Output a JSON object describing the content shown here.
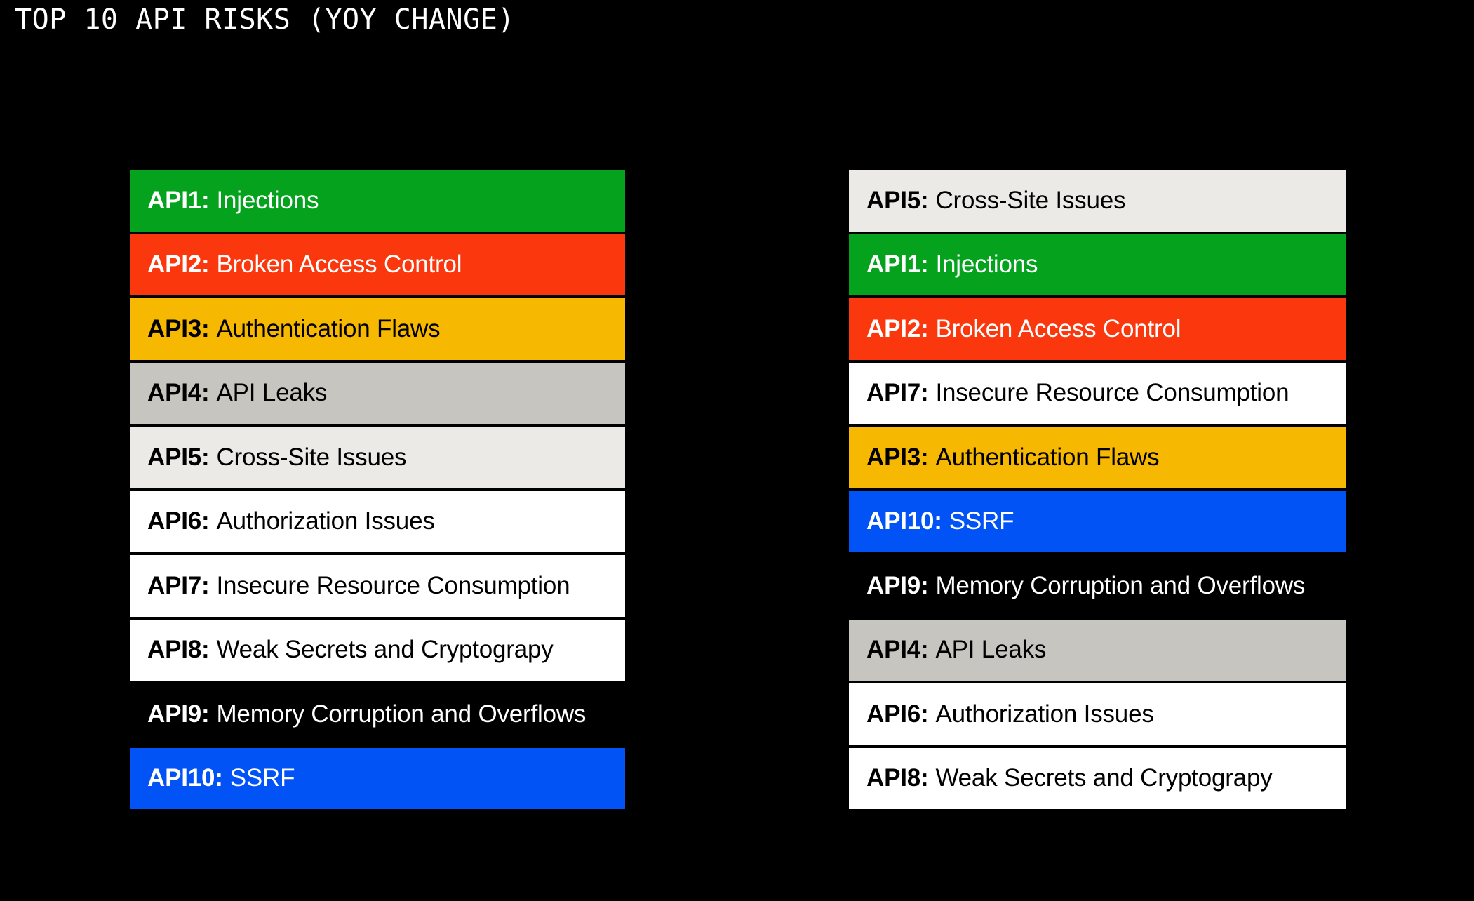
{
  "title": "TOP 10 API RISKS (YOY CHANGE)",
  "colors": {
    "background": "#000000",
    "title_text": "#FFFFFF",
    "green": "#05A21E",
    "red": "#FB370D",
    "amber": "#F6B800",
    "gray": "#C6C5C0",
    "light_gray": "#EBEAE7",
    "white": "#FFFFFF",
    "blue": "#0253F6",
    "black": "#000000"
  },
  "columns": {
    "left": {
      "items": [
        {
          "id": "API1:",
          "label": "Injections",
          "bg": "#05A21E",
          "fg": "#FFFFFF"
        },
        {
          "id": "API2:",
          "label": "Broken Access Control",
          "bg": "#FB370D",
          "fg": "#FFFFFF"
        },
        {
          "id": "API3:",
          "label": "Authentication Flaws",
          "bg": "#F6B800",
          "fg": "#000000"
        },
        {
          "id": "API4:",
          "label": "API Leaks",
          "bg": "#C6C5C0",
          "fg": "#000000"
        },
        {
          "id": "API5:",
          "label": "Cross-Site Issues",
          "bg": "#EBEAE7",
          "fg": "#000000"
        },
        {
          "id": "API6:",
          "label": "Authorization Issues",
          "bg": "#FFFFFF",
          "fg": "#000000"
        },
        {
          "id": "API7:",
          "label": "Insecure Resource Consumption",
          "bg": "#FFFFFF",
          "fg": "#000000"
        },
        {
          "id": "API8:",
          "label": "Weak Secrets and Cryptograpy",
          "bg": "#FFFFFF",
          "fg": "#000000"
        },
        {
          "id": "API9:",
          "label": "Memory Corruption and Overflows",
          "bg": "#000000",
          "fg": "#FFFFFF"
        },
        {
          "id": "API10:",
          "label": "SSRF",
          "bg": "#0253F6",
          "fg": "#FFFFFF"
        }
      ]
    },
    "right": {
      "items": [
        {
          "id": "API5:",
          "label": "Cross-Site Issues",
          "bg": "#EBEAE7",
          "fg": "#000000"
        },
        {
          "id": "API1:",
          "label": "Injections",
          "bg": "#05A21E",
          "fg": "#FFFFFF"
        },
        {
          "id": "API2:",
          "label": "Broken Access Control",
          "bg": "#FB370D",
          "fg": "#FFFFFF"
        },
        {
          "id": "API7:",
          "label": "Insecure Resource Consumption",
          "bg": "#FFFFFF",
          "fg": "#000000"
        },
        {
          "id": "API3:",
          "label": "Authentication Flaws",
          "bg": "#F6B800",
          "fg": "#000000"
        },
        {
          "id": "API10:",
          "label": "SSRF",
          "bg": "#0253F6",
          "fg": "#FFFFFF"
        },
        {
          "id": "API9:",
          "label": "Memory Corruption and Overflows",
          "bg": "#000000",
          "fg": "#FFFFFF"
        },
        {
          "id": "API4:",
          "label": "API Leaks",
          "bg": "#C6C5C0",
          "fg": "#000000"
        },
        {
          "id": "API6:",
          "label": "Authorization Issues",
          "bg": "#FFFFFF",
          "fg": "#000000"
        },
        {
          "id": "API8:",
          "label": "Weak Secrets and Cryptograpy",
          "bg": "#FFFFFF",
          "fg": "#000000"
        }
      ]
    }
  },
  "chart_data": {
    "type": "table",
    "title": "TOP 10 API RISKS (YOY CHANGE)",
    "left_ranking": [
      "API1: Injections",
      "API2: Broken Access Control",
      "API3: Authentication Flaws",
      "API4: API Leaks",
      "API5: Cross-Site Issues",
      "API6: Authorization Issues",
      "API7: Insecure Resource Consumption",
      "API8: Weak Secrets and Cryptograpy",
      "API9: Memory Corruption and Overflows",
      "API10: SSRF"
    ],
    "right_ranking": [
      "API5: Cross-Site Issues",
      "API1: Injections",
      "API2: Broken Access Control",
      "API7: Insecure Resource Consumption",
      "API3: Authentication Flaws",
      "API10: SSRF",
      "API9: Memory Corruption and Overflows",
      "API4: API Leaks",
      "API6: Authorization Issues",
      "API8: Weak Secrets and Cryptograpy"
    ],
    "legend_position": "none",
    "grid": false
  }
}
